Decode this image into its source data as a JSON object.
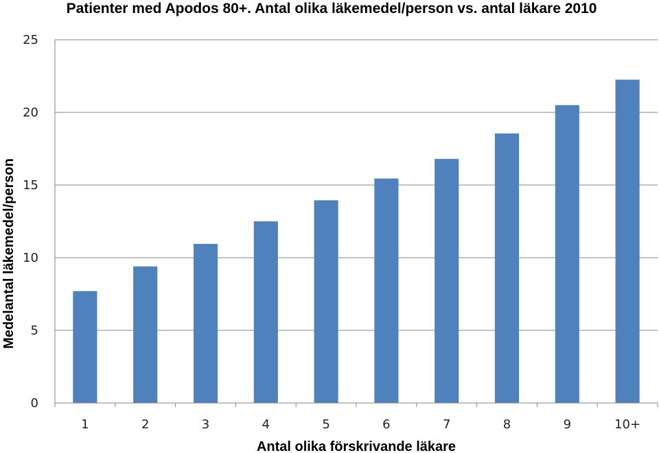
{
  "chart_data": {
    "type": "bar",
    "title": "Patienter med Apodos 80+. Antal olika läkemedel/person vs. antal läkare 2010",
    "xlabel": "Antal olika förskrivande läkare",
    "ylabel": "Medelantal läkemedel/person",
    "categories": [
      "1",
      "2",
      "3",
      "4",
      "5",
      "6",
      "7",
      "8",
      "9",
      "10+"
    ],
    "values": [
      7.7,
      9.4,
      10.95,
      12.5,
      13.95,
      15.45,
      16.8,
      18.55,
      20.5,
      22.25
    ],
    "ylim": [
      0,
      25
    ],
    "yticks": [
      "0",
      "5",
      "10",
      "15",
      "20",
      "25"
    ],
    "grid": true,
    "bar_color": "#4F81BD"
  }
}
